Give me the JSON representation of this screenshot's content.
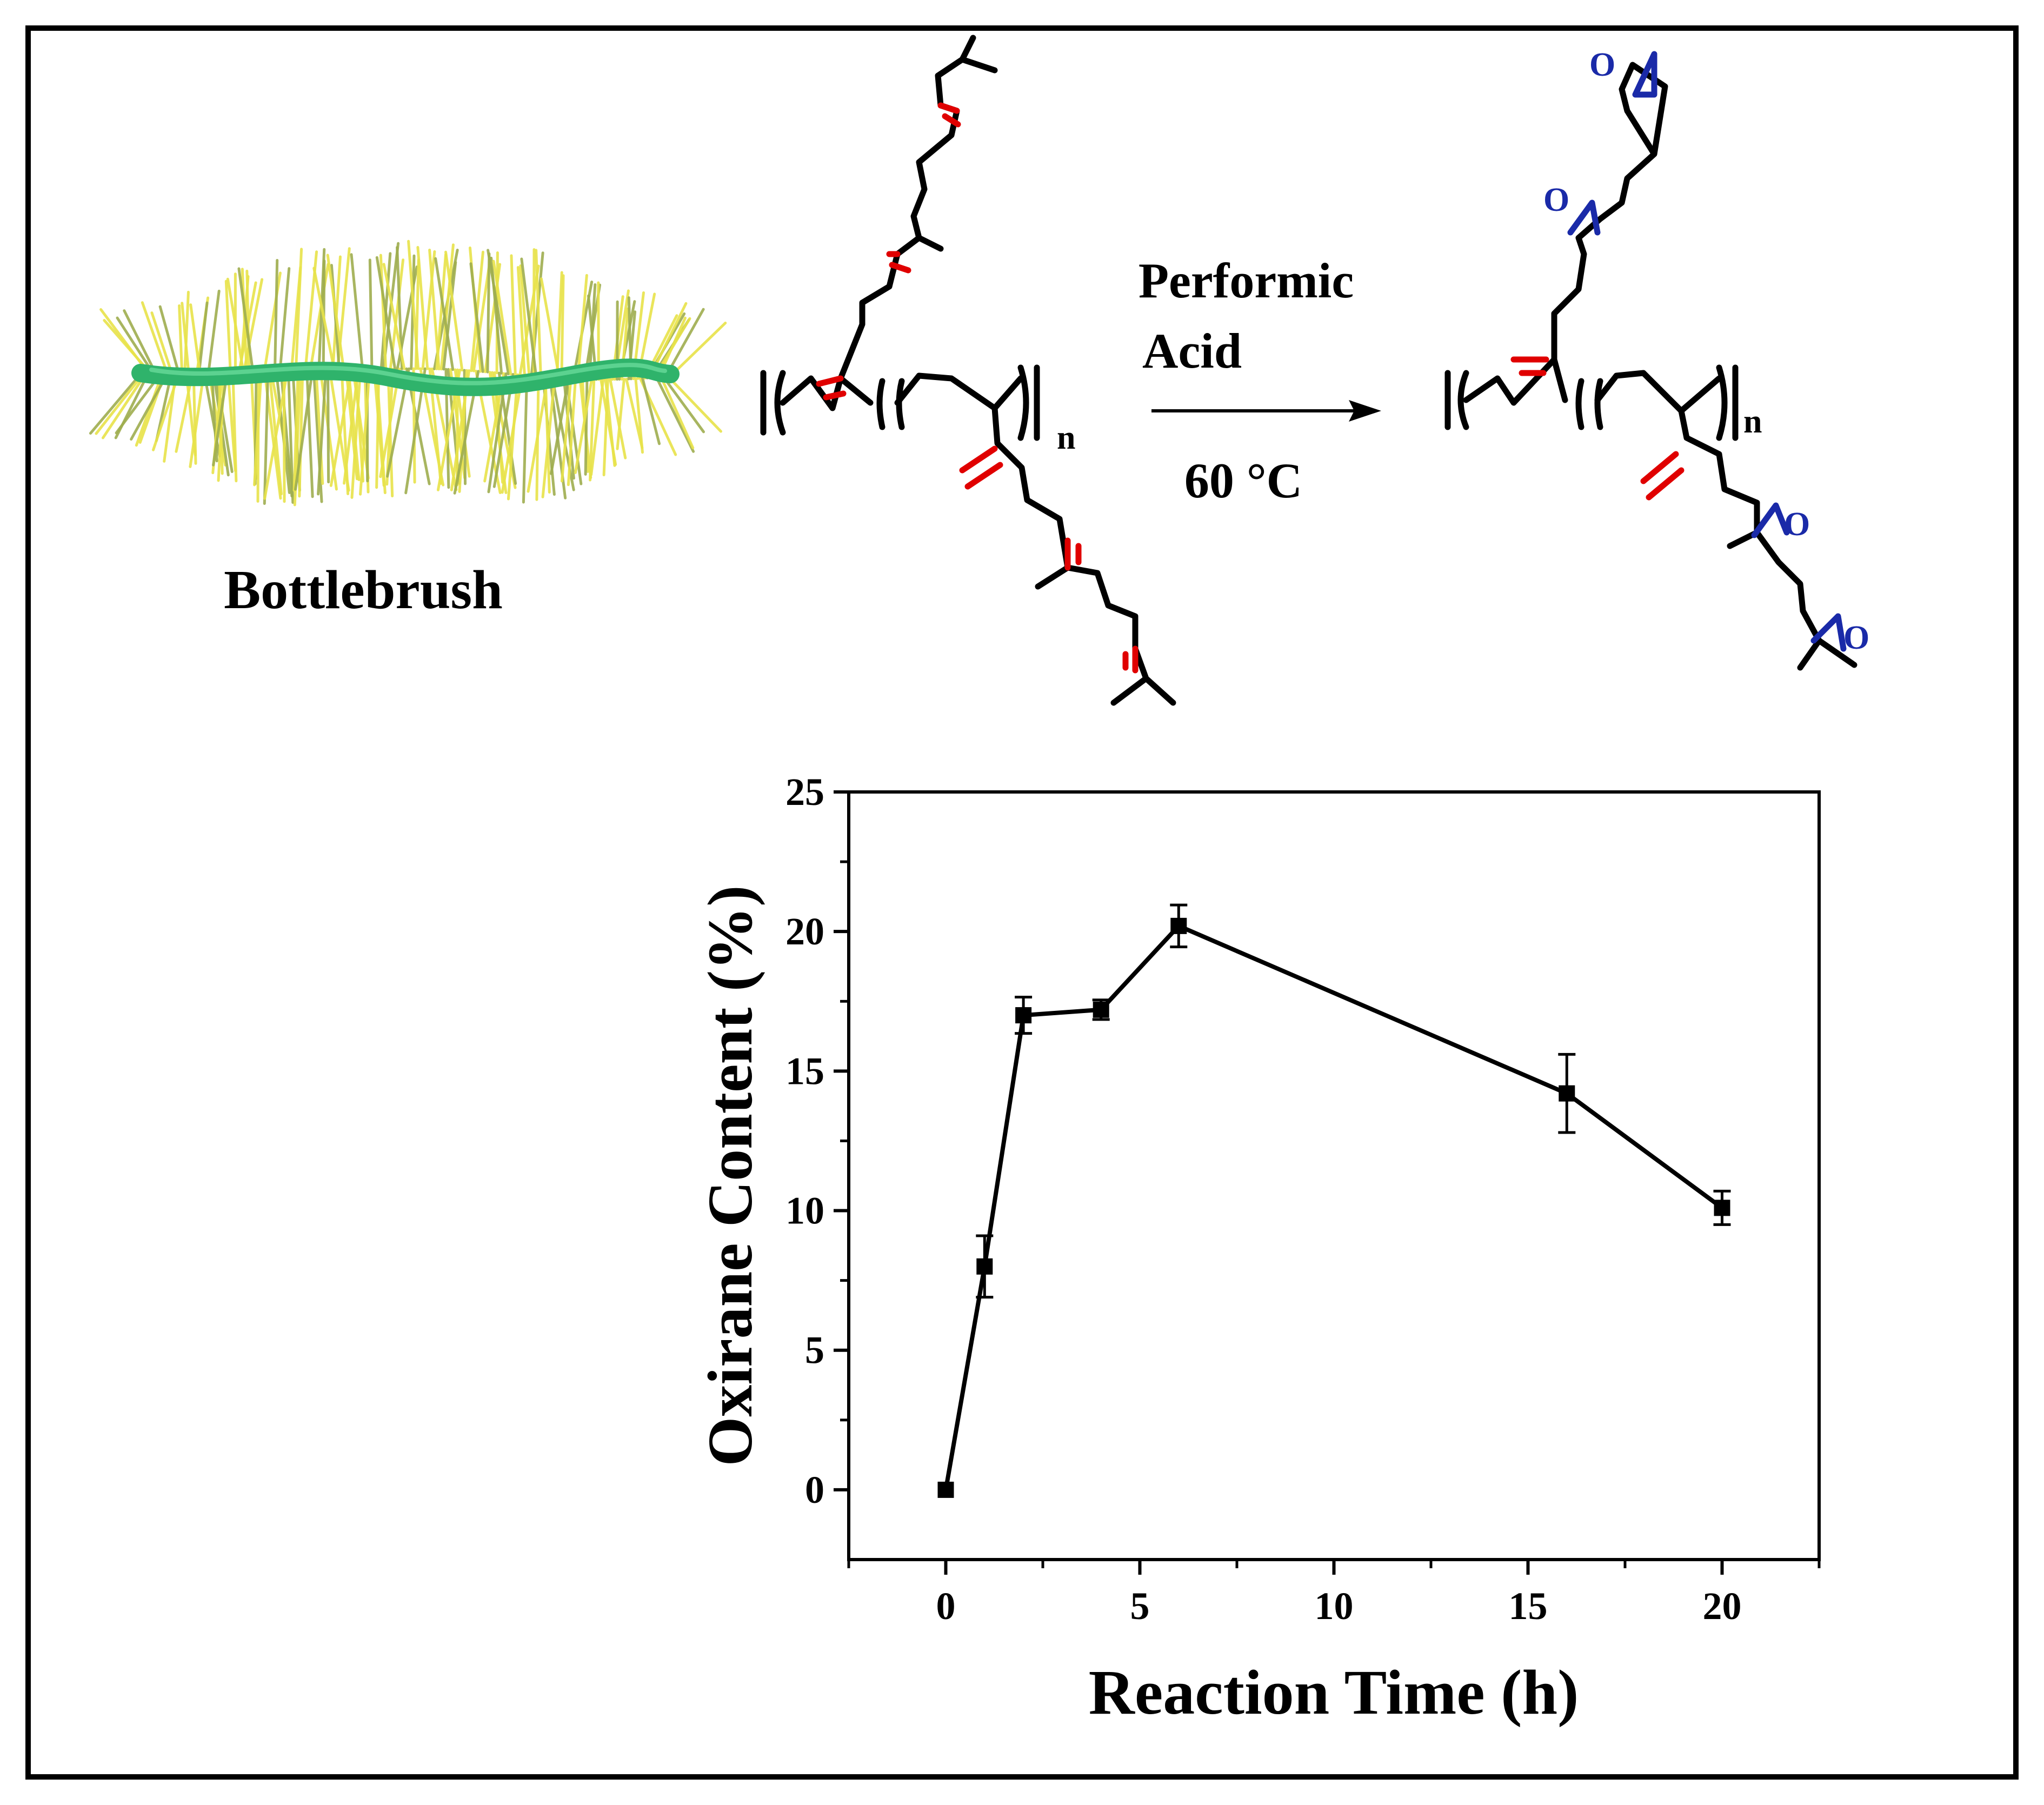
{
  "figure": {
    "bottlebrush_label": "Bottlebrush",
    "reagent_line1": "Performic",
    "reagent_line2": "Acid",
    "condition": "60 °C",
    "repeat_unit_subscript": "n",
    "oxygen_symbol": "O"
  },
  "colors": {
    "frame": "#000000",
    "backbone": "#000000",
    "double_bond": "#e00000",
    "epoxide": "#1a2aa8",
    "brush_core": "#2fb36b",
    "brush_bristle": "#e8e34a"
  },
  "chart_data": {
    "type": "line",
    "title": "",
    "xlabel": "Reaction Time (h)",
    "ylabel": "Oxirane Content (%)",
    "xlim": [
      -2.5,
      22.5
    ],
    "ylim": [
      -2.5,
      25
    ],
    "xticks": [
      0,
      5,
      10,
      15,
      20
    ],
    "yticks": [
      0,
      5,
      10,
      15,
      20,
      25
    ],
    "grid": false,
    "legend": "none",
    "marker": "square",
    "series": [
      {
        "x": [
          0,
          1,
          2,
          4,
          6,
          16,
          20
        ],
        "y": [
          0,
          8.0,
          17.0,
          17.2,
          20.2,
          14.2,
          10.1
        ],
        "yerr": [
          0,
          1.1,
          0.65,
          0.35,
          0.75,
          1.4,
          0.6
        ]
      }
    ]
  }
}
